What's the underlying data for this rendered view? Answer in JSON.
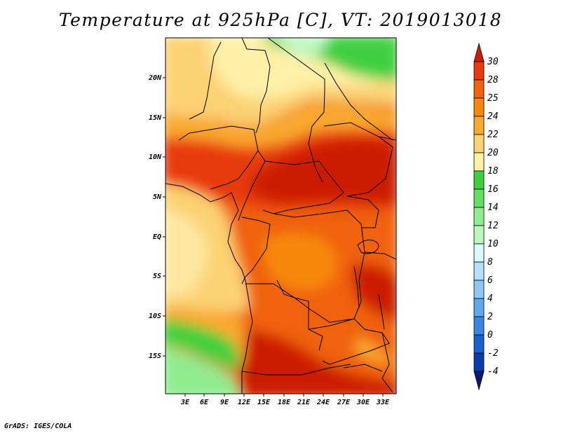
{
  "title": "Temperature at 925hPa [C], VT: 2019013018",
  "footer": "GrADS: IGES/COLA",
  "map": {
    "lon_ticks": [
      "3E",
      "6E",
      "9E",
      "12E",
      "15E",
      "18E",
      "21E",
      "24E",
      "27E",
      "30E",
      "33E"
    ],
    "lat_ticks": [
      "20N",
      "15N",
      "10N",
      "5N",
      "EQ",
      "5S",
      "10S",
      "15S"
    ]
  },
  "colorbar": {
    "labels": [
      "30",
      "28",
      "25",
      "24",
      "22",
      "20",
      "18",
      "16",
      "14",
      "12",
      "10",
      "8",
      "6",
      "4",
      "2",
      "0",
      "-2",
      "-4"
    ],
    "colors": [
      "#cc1e06",
      "#e83a0d",
      "#f0620e",
      "#f7880c",
      "#f9a82f",
      "#fcd273",
      "#fef0a6",
      "#3fcf3f",
      "#62e062",
      "#8fec8f",
      "#bff6bf",
      "#d8f8fe",
      "#b5e0fb",
      "#8ec6f6",
      "#5ea8ee",
      "#3a85e4",
      "#1c60d0",
      "#0a3caa",
      "#0a1678"
    ]
  },
  "colors": {
    "hot": "#cc1e06",
    "warm": "#e83a0d",
    "orange": "#f0620e",
    "amber": "#f7880c",
    "gold": "#f9a82f",
    "sand": "#fcd273",
    "cream": "#fef0a6",
    "green": "#3fcf3f",
    "lightgreen": "#8fec8f"
  }
}
